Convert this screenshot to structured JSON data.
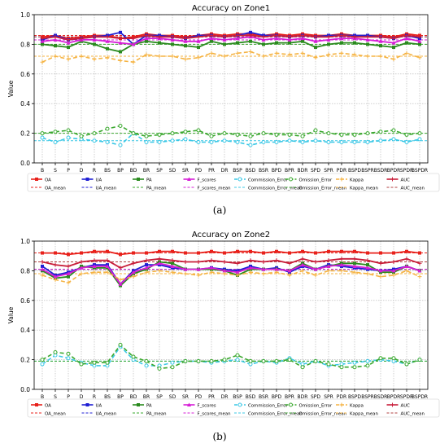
{
  "charts": [
    {
      "panel_label": "(a)",
      "chart_data": {
        "type": "line",
        "title": "Accuracy on Zone1",
        "xlabel": "Method",
        "ylabel": "Value",
        "ylim": [
          0,
          1.0
        ],
        "yticks": [
          "0.0",
          "0.2",
          "0.4",
          "0.6",
          "0.8",
          "1.0"
        ],
        "grid": true,
        "legend_position": "below",
        "categories": [
          "B",
          "S",
          "P",
          "D",
          "R",
          "BS",
          "BP",
          "BD",
          "BR",
          "SP",
          "SD",
          "SR",
          "PD",
          "PR",
          "DR",
          "BSP",
          "BSD",
          "BSR",
          "BPD",
          "BPR",
          "BDR",
          "SPD",
          "SPR",
          "PDR",
          "BSPD",
          "BSPR",
          "BSDR",
          "BPDR",
          "SPDR",
          "BSPDR"
        ],
        "series": [
          {
            "name": "OA",
            "values": [
              0.85,
              0.86,
              0.84,
              0.85,
              0.86,
              0.86,
              0.84,
              0.85,
              0.87,
              0.86,
              0.86,
              0.85,
              0.86,
              0.87,
              0.86,
              0.87,
              0.87,
              0.86,
              0.87,
              0.86,
              0.87,
              0.86,
              0.86,
              0.87,
              0.86,
              0.86,
              0.86,
              0.85,
              0.87,
              0.86
            ]
          },
          {
            "name": "UA",
            "values": [
              0.83,
              0.86,
              0.83,
              0.84,
              0.85,
              0.86,
              0.88,
              0.8,
              0.86,
              0.86,
              0.85,
              0.84,
              0.86,
              0.86,
              0.85,
              0.86,
              0.88,
              0.86,
              0.86,
              0.85,
              0.86,
              0.85,
              0.86,
              0.86,
              0.86,
              0.86,
              0.85,
              0.84,
              0.86,
              0.84
            ]
          },
          {
            "name": "PA",
            "values": [
              0.8,
              0.79,
              0.78,
              0.82,
              0.8,
              0.77,
              0.75,
              0.8,
              0.82,
              0.81,
              0.8,
              0.79,
              0.78,
              0.82,
              0.8,
              0.81,
              0.82,
              0.8,
              0.81,
              0.81,
              0.82,
              0.78,
              0.8,
              0.81,
              0.81,
              0.8,
              0.79,
              0.78,
              0.81,
              0.8
            ]
          },
          {
            "name": "F_scores",
            "values": [
              0.82,
              0.83,
              0.81,
              0.83,
              0.83,
              0.82,
              0.81,
              0.8,
              0.84,
              0.84,
              0.83,
              0.82,
              0.82,
              0.84,
              0.83,
              0.84,
              0.85,
              0.83,
              0.84,
              0.83,
              0.84,
              0.82,
              0.83,
              0.84,
              0.84,
              0.83,
              0.82,
              0.81,
              0.84,
              0.82
            ]
          },
          {
            "name": "Commission_Error",
            "values": [
              0.17,
              0.14,
              0.17,
              0.16,
              0.15,
              0.14,
              0.12,
              0.2,
              0.14,
              0.14,
              0.15,
              0.16,
              0.14,
              0.14,
              0.15,
              0.14,
              0.12,
              0.14,
              0.14,
              0.15,
              0.14,
              0.15,
              0.14,
              0.14,
              0.14,
              0.14,
              0.15,
              0.16,
              0.14,
              0.16
            ]
          },
          {
            "name": "Omission_Error",
            "values": [
              0.2,
              0.21,
              0.22,
              0.18,
              0.2,
              0.23,
              0.25,
              0.2,
              0.18,
              0.19,
              0.2,
              0.21,
              0.22,
              0.18,
              0.2,
              0.19,
              0.18,
              0.2,
              0.19,
              0.19,
              0.18,
              0.22,
              0.2,
              0.19,
              0.19,
              0.2,
              0.21,
              0.22,
              0.19,
              0.2
            ]
          },
          {
            "name": "Kappa",
            "values": [
              0.68,
              0.72,
              0.7,
              0.72,
              0.7,
              0.71,
              0.69,
              0.68,
              0.73,
              0.72,
              0.72,
              0.7,
              0.71,
              0.74,
              0.72,
              0.74,
              0.75,
              0.72,
              0.74,
              0.73,
              0.74,
              0.71,
              0.73,
              0.74,
              0.73,
              0.72,
              0.72,
              0.7,
              0.74,
              0.71
            ]
          },
          {
            "name": "AUC",
            "values": [
              0.84,
              0.85,
              0.83,
              0.84,
              0.85,
              0.85,
              0.84,
              0.84,
              0.86,
              0.85,
              0.85,
              0.84,
              0.85,
              0.86,
              0.85,
              0.86,
              0.86,
              0.85,
              0.86,
              0.85,
              0.86,
              0.85,
              0.85,
              0.86,
              0.85,
              0.85,
              0.85,
              0.84,
              0.86,
              0.85
            ]
          }
        ],
        "mean_series": [
          {
            "name": "OA_mean",
            "value": 0.86
          },
          {
            "name": "UA_mean",
            "value": 0.85
          },
          {
            "name": "PA_mean",
            "value": 0.8
          },
          {
            "name": "F_scores_mean",
            "value": 0.83
          },
          {
            "name": "Commission_Error_mean",
            "value": 0.15
          },
          {
            "name": "Omission_Error_mean",
            "value": 0.2
          },
          {
            "name": "Kappa_mean",
            "value": 0.72
          },
          {
            "name": "AUC_mean",
            "value": 0.85
          }
        ]
      }
    },
    {
      "panel_label": "(b)",
      "chart_data": {
        "type": "line",
        "title": "Accuracy on Zone2",
        "xlabel": "Method",
        "ylabel": "Value",
        "ylim": [
          0,
          1.0
        ],
        "yticks": [
          "0.0",
          "0.2",
          "0.4",
          "0.6",
          "0.8",
          "1.0"
        ],
        "grid": true,
        "legend_position": "below",
        "categories": [
          "B",
          "S",
          "P",
          "D",
          "R",
          "BS",
          "BP",
          "BD",
          "BR",
          "SP",
          "SD",
          "SR",
          "PD",
          "PR",
          "DR",
          "BSP",
          "BSD",
          "BSR",
          "BPD",
          "BPR",
          "BDR",
          "SPD",
          "SPR",
          "PDR",
          "BSPD",
          "BSPR",
          "BSDR",
          "BPDR",
          "SPDR",
          "BSPDR"
        ],
        "series": [
          {
            "name": "OA",
            "values": [
              0.92,
              0.92,
              0.91,
              0.92,
              0.93,
              0.93,
              0.91,
              0.92,
              0.92,
              0.93,
              0.93,
              0.92,
              0.92,
              0.93,
              0.92,
              0.93,
              0.93,
              0.92,
              0.93,
              0.92,
              0.93,
              0.92,
              0.93,
              0.93,
              0.93,
              0.92,
              0.92,
              0.92,
              0.93,
              0.92
            ]
          },
          {
            "name": "UA",
            "values": [
              0.83,
              0.77,
              0.79,
              0.82,
              0.84,
              0.84,
              0.71,
              0.8,
              0.84,
              0.84,
              0.82,
              0.81,
              0.81,
              0.82,
              0.81,
              0.8,
              0.83,
              0.81,
              0.82,
              0.79,
              0.83,
              0.81,
              0.84,
              0.83,
              0.82,
              0.81,
              0.8,
              0.81,
              0.83,
              0.8
            ]
          },
          {
            "name": "PA",
            "values": [
              0.8,
              0.75,
              0.76,
              0.83,
              0.82,
              0.82,
              0.7,
              0.78,
              0.81,
              0.86,
              0.85,
              0.81,
              0.81,
              0.81,
              0.8,
              0.77,
              0.81,
              0.81,
              0.81,
              0.8,
              0.85,
              0.81,
              0.83,
              0.85,
              0.85,
              0.84,
              0.79,
              0.79,
              0.83,
              0.8
            ]
          },
          {
            "name": "F_scores",
            "values": [
              0.81,
              0.76,
              0.78,
              0.82,
              0.83,
              0.83,
              0.71,
              0.79,
              0.82,
              0.85,
              0.83,
              0.81,
              0.81,
              0.82,
              0.8,
              0.79,
              0.82,
              0.81,
              0.81,
              0.8,
              0.84,
              0.81,
              0.83,
              0.84,
              0.83,
              0.82,
              0.8,
              0.8,
              0.83,
              0.8
            ]
          },
          {
            "name": "Commission_Error",
            "values": [
              0.17,
              0.23,
              0.21,
              0.18,
              0.16,
              0.16,
              0.29,
              0.2,
              0.16,
              0.16,
              0.18,
              0.19,
              0.19,
              0.18,
              0.19,
              0.2,
              0.17,
              0.19,
              0.18,
              0.21,
              0.17,
              0.19,
              0.16,
              0.17,
              0.18,
              0.19,
              0.2,
              0.19,
              0.17,
              0.2
            ]
          },
          {
            "name": "Omission_Error",
            "values": [
              0.2,
              0.25,
              0.24,
              0.17,
              0.18,
              0.18,
              0.3,
              0.22,
              0.19,
              0.14,
              0.15,
              0.19,
              0.19,
              0.19,
              0.2,
              0.23,
              0.19,
              0.19,
              0.19,
              0.2,
              0.15,
              0.19,
              0.17,
              0.15,
              0.15,
              0.16,
              0.21,
              0.21,
              0.17,
              0.2
            ]
          },
          {
            "name": "Kappa",
            "values": [
              0.77,
              0.74,
              0.72,
              0.78,
              0.79,
              0.79,
              0.74,
              0.76,
              0.79,
              0.8,
              0.79,
              0.78,
              0.77,
              0.79,
              0.78,
              0.77,
              0.79,
              0.78,
              0.79,
              0.77,
              0.8,
              0.77,
              0.8,
              0.8,
              0.79,
              0.78,
              0.76,
              0.77,
              0.8,
              0.76
            ]
          },
          {
            "name": "AUC",
            "values": [
              0.86,
              0.84,
              0.83,
              0.86,
              0.87,
              0.87,
              0.82,
              0.85,
              0.87,
              0.88,
              0.87,
              0.86,
              0.86,
              0.87,
              0.86,
              0.85,
              0.87,
              0.86,
              0.87,
              0.85,
              0.88,
              0.86,
              0.87,
              0.88,
              0.88,
              0.87,
              0.85,
              0.86,
              0.88,
              0.85
            ]
          }
        ],
        "mean_series": [
          {
            "name": "OA_mean",
            "value": 0.92
          },
          {
            "name": "UA_mean",
            "value": 0.81
          },
          {
            "name": "PA_mean",
            "value": 0.81
          },
          {
            "name": "F_scores_mean",
            "value": 0.81
          },
          {
            "name": "Commission_Error_mean",
            "value": 0.19
          },
          {
            "name": "Omission_Error_mean",
            "value": 0.19
          },
          {
            "name": "Kappa_mean",
            "value": 0.78
          },
          {
            "name": "AUC_mean",
            "value": 0.86
          }
        ]
      }
    }
  ],
  "legend": {
    "entries": [
      {
        "name": "OA",
        "mean": "OA_mean"
      },
      {
        "name": "UA",
        "mean": "UA_mean"
      },
      {
        "name": "PA",
        "mean": "PA_mean"
      },
      {
        "name": "F_scores",
        "mean": "F_scores_mean"
      },
      {
        "name": "Commission_Error",
        "mean": "Commission_Error_mean"
      },
      {
        "name": "Omission_Error",
        "mean": "Omission_Error_mean"
      },
      {
        "name": "Kappa",
        "mean": "Kappa_mean"
      },
      {
        "name": "AUC",
        "mean": "AUC_mean"
      }
    ]
  },
  "styles": {
    "OA": {
      "color": "#e8211b",
      "marker": "square",
      "mean_color": "#e8211b"
    },
    "UA": {
      "color": "#1f1fd4",
      "marker": "square",
      "mean_color": "#1f1fd4"
    },
    "PA": {
      "color": "#2a8a1e",
      "marker": "square",
      "mean_color": "#3aa82e"
    },
    "F_scores": {
      "color": "#d61ed6",
      "marker": "triangle",
      "mean_color": "#d61ed6"
    },
    "Commission_Error": {
      "color": "#3cc8e6",
      "marker": "circle",
      "mean_color": "#3cc8e6"
    },
    "Omission_Error": {
      "color": "#3aa82e",
      "marker": "circle",
      "mean_color": "#3aa82e"
    },
    "Kappa": {
      "color": "#f5b342",
      "marker": "plus",
      "mean_color": "#f5b342"
    },
    "AUC": {
      "color": "#c81e3a",
      "marker": "plus",
      "mean_color": "#b04040"
    }
  }
}
